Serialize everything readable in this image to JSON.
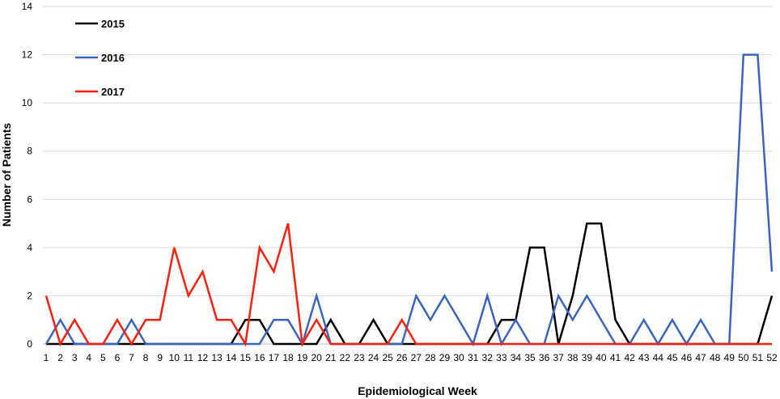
{
  "chart_data": {
    "type": "line",
    "xlabel": "Epidemiological Week",
    "ylabel": "Number of Patients",
    "ylim": [
      0,
      14
    ],
    "yticks": [
      0,
      2,
      4,
      6,
      8,
      10,
      12,
      14
    ],
    "grid": "horizontal",
    "legend_position": "top-left",
    "x": [
      1,
      2,
      3,
      4,
      5,
      6,
      7,
      8,
      9,
      10,
      11,
      12,
      13,
      14,
      15,
      16,
      17,
      18,
      19,
      20,
      21,
      22,
      23,
      24,
      25,
      26,
      27,
      28,
      29,
      30,
      31,
      32,
      33,
      34,
      35,
      36,
      37,
      38,
      39,
      40,
      41,
      42,
      43,
      44,
      45,
      46,
      47,
      48,
      49,
      50,
      51,
      52
    ],
    "series": [
      {
        "name": "2015",
        "color": "#000000",
        "values": [
          0,
          0,
          0,
          0,
          0,
          0,
          0,
          0,
          0,
          0,
          0,
          0,
          0,
          0,
          1,
          1,
          0,
          0,
          0,
          0,
          1,
          0,
          0,
          1,
          0,
          0,
          0,
          0,
          0,
          0,
          0,
          0,
          1,
          1,
          4,
          4,
          0,
          2,
          5,
          5,
          1,
          0,
          0,
          0,
          0,
          0,
          0,
          0,
          0,
          0,
          0,
          2
        ]
      },
      {
        "name": "2016",
        "color": "#3a64c0",
        "values": [
          0,
          1,
          0,
          0,
          0,
          0,
          1,
          0,
          0,
          0,
          0,
          0,
          0,
          0,
          0,
          0,
          1,
          1,
          0,
          2,
          0,
          0,
          0,
          0,
          0,
          0,
          2,
          1,
          2,
          1,
          0,
          2,
          0,
          1,
          0,
          0,
          2,
          1,
          2,
          1,
          0,
          0,
          1,
          0,
          1,
          0,
          1,
          0,
          0,
          12,
          12,
          3
        ]
      },
      {
        "name": "2017",
        "color": "#ff1f0f",
        "values": [
          2,
          0,
          1,
          0,
          0,
          1,
          0,
          1,
          1,
          4,
          2,
          3,
          1,
          1,
          0,
          4,
          3,
          5,
          0,
          1,
          0,
          0,
          0,
          0,
          0,
          1,
          0,
          0,
          0,
          0,
          0,
          0,
          0,
          0,
          0,
          0,
          0,
          0,
          0,
          0,
          0,
          0,
          0,
          0,
          0,
          0,
          0,
          0,
          0,
          0,
          0,
          0
        ]
      }
    ]
  }
}
